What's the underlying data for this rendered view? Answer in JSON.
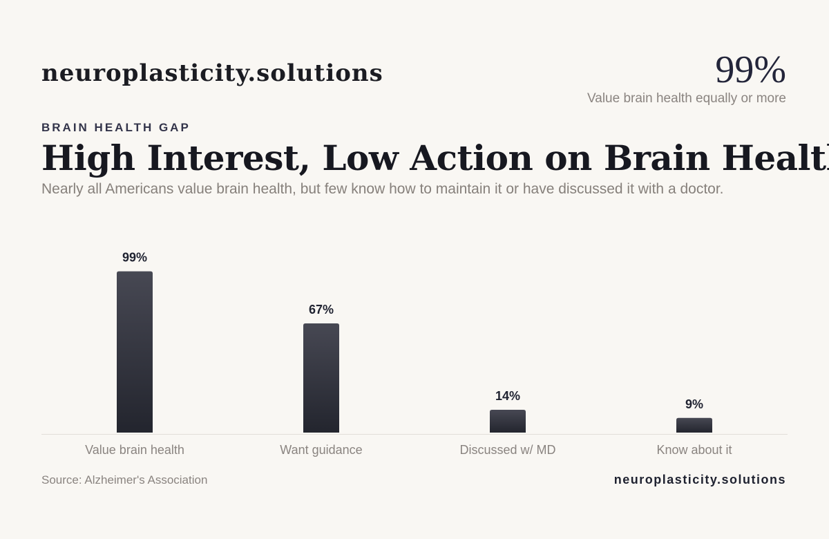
{
  "brand": "neuroplasticity.solutions",
  "headline_stat": {
    "value": "99%",
    "caption": "Value brain health equally or more"
  },
  "eyebrow": "BRAIN HEALTH GAP",
  "title": "High Interest, Low Action on Brain Health",
  "subtitle": "Nearly all Americans value brain health, but few know how to maintain it or have discussed it with a doctor.",
  "source": "Source: Alzheimer's Association",
  "footer_brand": "neuroplasticity.solutions",
  "colors": {
    "bar_top": "#474853",
    "bar_bottom": "#23252e",
    "baseline": "#e2ded8",
    "background": "#f9f7f3"
  },
  "chart_data": {
    "type": "bar",
    "categories": [
      "Value brain health",
      "Want guidance",
      "Discussed w/ MD",
      "Know about it"
    ],
    "values": [
      99,
      67,
      14,
      9
    ],
    "value_labels": [
      "99%",
      "67%",
      "14%",
      "9%"
    ],
    "ylim": [
      0,
      100
    ],
    "grid": false,
    "legend": "none"
  }
}
